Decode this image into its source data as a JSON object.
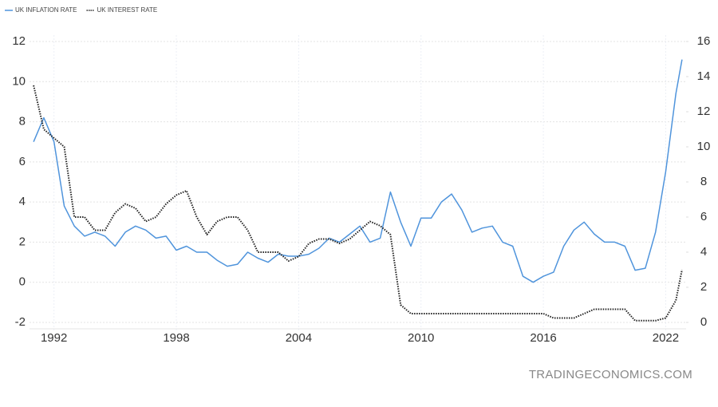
{
  "chart_data": {
    "type": "line",
    "x": [
      1991,
      1991.5,
      1992,
      1992.5,
      1993,
      1993.5,
      1994,
      1994.5,
      1995,
      1995.5,
      1996,
      1996.5,
      1997,
      1997.5,
      1998,
      1998.5,
      1999,
      1999.5,
      2000,
      2000.5,
      2001,
      2001.5,
      2002,
      2002.5,
      2003,
      2003.5,
      2004,
      2004.5,
      2005,
      2005.5,
      2006,
      2006.5,
      2007,
      2007.5,
      2008,
      2008.5,
      2009,
      2009.5,
      2010,
      2010.5,
      2011,
      2011.5,
      2012,
      2012.5,
      2013,
      2013.5,
      2014,
      2014.5,
      2015,
      2015.5,
      2016,
      2016.5,
      2017,
      2017.5,
      2018,
      2018.5,
      2019,
      2019.5,
      2020,
      2020.5,
      2021,
      2021.5,
      2022,
      2022.5,
      2022.8
    ],
    "series": [
      {
        "name": "UK INFLATION RATE",
        "color": "#4f94dc",
        "axis": "y",
        "values": [
          7.0,
          8.2,
          7.0,
          3.8,
          2.8,
          2.3,
          2.5,
          2.3,
          1.8,
          2.5,
          2.8,
          2.6,
          2.2,
          2.3,
          1.6,
          1.8,
          1.5,
          1.5,
          1.1,
          0.8,
          0.9,
          1.5,
          1.2,
          1.0,
          1.4,
          1.3,
          1.3,
          1.4,
          1.7,
          2.2,
          2.0,
          2.4,
          2.8,
          2.0,
          2.2,
          4.5,
          3.0,
          1.8,
          3.2,
          3.2,
          4.0,
          4.4,
          3.6,
          2.5,
          2.7,
          2.8,
          2.0,
          1.8,
          0.3,
          0.0,
          0.3,
          0.5,
          1.8,
          2.6,
          3.0,
          2.4,
          2.0,
          2.0,
          1.8,
          0.6,
          0.7,
          2.5,
          5.5,
          9.4,
          11.1
        ]
      },
      {
        "name": "UK INTEREST RATE",
        "color": "#222222",
        "axis": "y2",
        "values": [
          13.5,
          11.0,
          10.5,
          10.0,
          6.0,
          6.0,
          5.25,
          5.25,
          6.25,
          6.75,
          6.5,
          5.75,
          6.0,
          6.75,
          7.25,
          7.5,
          6.0,
          5.0,
          5.75,
          6.0,
          6.0,
          5.25,
          4.0,
          4.0,
          4.0,
          3.5,
          3.75,
          4.5,
          4.75,
          4.75,
          4.5,
          4.75,
          5.25,
          5.75,
          5.5,
          5.0,
          1.0,
          0.5,
          0.5,
          0.5,
          0.5,
          0.5,
          0.5,
          0.5,
          0.5,
          0.5,
          0.5,
          0.5,
          0.5,
          0.5,
          0.5,
          0.25,
          0.25,
          0.25,
          0.5,
          0.75,
          0.75,
          0.75,
          0.75,
          0.1,
          0.1,
          0.1,
          0.25,
          1.25,
          3.0
        ]
      }
    ],
    "xlim": [
      1990.8,
      2023
    ],
    "xticks": [
      1992,
      1998,
      2004,
      2010,
      2016,
      2022
    ],
    "ylim": [
      -2,
      12
    ],
    "yticks": [
      -2,
      0,
      2,
      4,
      6,
      8,
      10,
      12
    ],
    "y2lim": [
      0,
      16
    ],
    "y2ticks": [
      0,
      2,
      4,
      6,
      8,
      10,
      12,
      14,
      16
    ],
    "grid": true,
    "legend": "top-left",
    "watermark": "TRADINGECONOMICS.COM"
  }
}
